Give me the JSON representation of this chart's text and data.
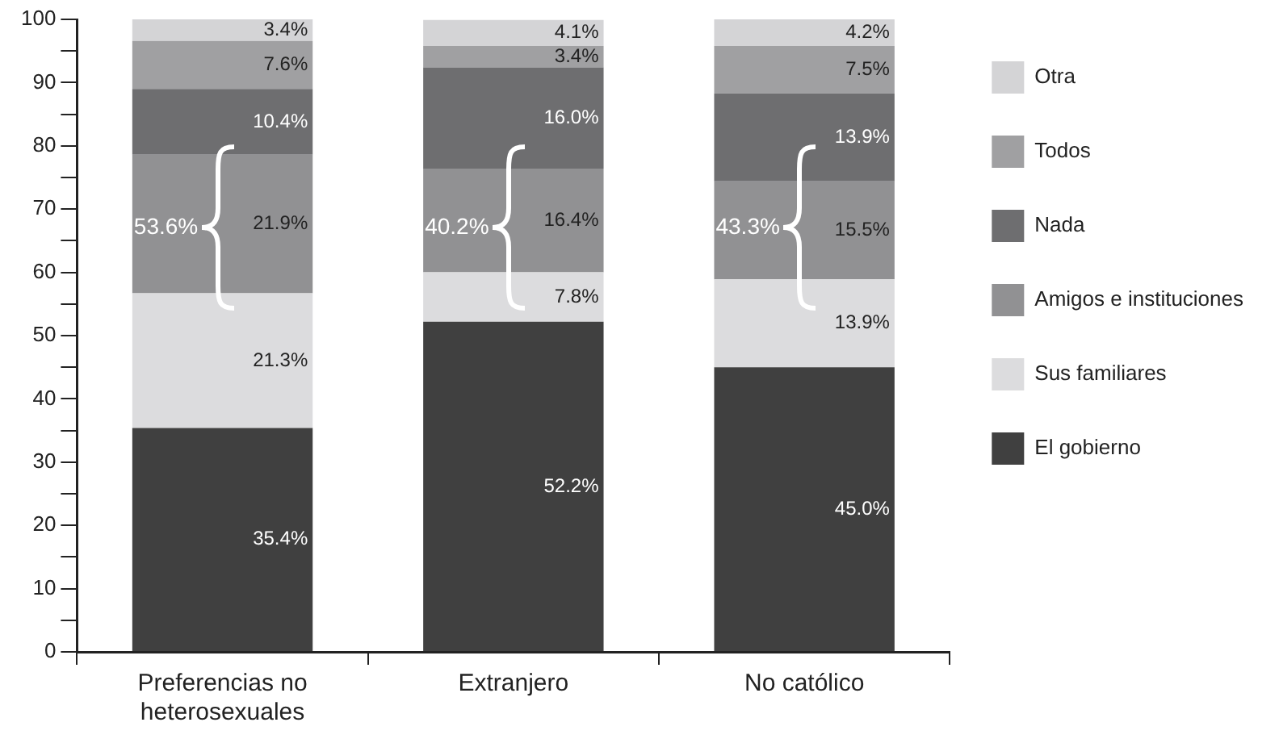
{
  "chart_data": {
    "type": "bar",
    "stacked": true,
    "categories": [
      "Preferencias no heterosexuales",
      "Extranjero",
      "No católico"
    ],
    "ylim": [
      0,
      100
    ],
    "yticks": [
      0,
      {
        "value": 5,
        "label": null
      },
      10,
      {
        "value": 15,
        "label": null
      },
      20,
      {
        "value": 25,
        "label": null
      },
      30,
      {
        "value": 35,
        "label": null
      },
      40,
      {
        "value": 45,
        "label": null
      },
      50,
      {
        "value": 55,
        "label": null
      },
      60,
      {
        "value": 65,
        "label": null
      },
      70,
      {
        "value": 75,
        "label": null
      },
      80,
      {
        "value": 85,
        "label": null
      },
      90,
      {
        "value": 95,
        "label": null
      },
      100
    ],
    "grid": false,
    "legend": "right",
    "series": [
      {
        "name": "El gobierno",
        "color": "#404040",
        "values": [
          35.4,
          52.2,
          45.0
        ],
        "value_labels": [
          "35.4%",
          "52.2%",
          "45.0%"
        ]
      },
      {
        "name": "Sus familiares",
        "color": "#dcdcde",
        "values": [
          21.3,
          7.8,
          13.9
        ],
        "value_labels": [
          "21.3%",
          "7.8%",
          "13.9%"
        ]
      },
      {
        "name": "Amigos e instituciones",
        "color": "#919193",
        "values": [
          21.9,
          16.4,
          15.5
        ],
        "value_labels": [
          "21.9%",
          "16.4%",
          "15.5%"
        ]
      },
      {
        "name": "Nada",
        "color": "#6e6e70",
        "values": [
          10.4,
          16.0,
          13.9
        ],
        "value_labels": [
          "10.4%",
          "16.0%",
          "13.9%"
        ]
      },
      {
        "name": "Todos",
        "color": "#a0a0a2",
        "values": [
          7.6,
          3.4,
          7.5
        ],
        "value_labels": [
          "7.6%",
          "3.4%",
          "7.5%"
        ]
      },
      {
        "name": "Otra",
        "color": "#d4d4d6",
        "values": [
          3.4,
          4.1,
          4.2
        ],
        "value_labels": [
          "3.4%",
          "4.1%",
          "4.2%"
        ]
      }
    ],
    "annotations": [
      "53.6%",
      "40.2%",
      "43.3%"
    ]
  }
}
